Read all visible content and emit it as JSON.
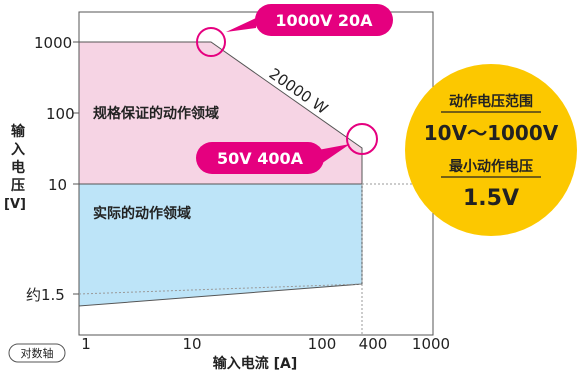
{
  "y_ticks": [
    "1000",
    "100",
    "10",
    "约1.5"
  ],
  "x_ticks": [
    "1",
    "10",
    "100",
    "400",
    "1000"
  ],
  "y_axis_label": [
    "输",
    "入",
    "电",
    "压",
    "[V]"
  ],
  "x_axis_label": "输入电流 [A]",
  "log_axis_tag": "对数轴",
  "region_guaranteed": "规格保证的动作领域",
  "region_actual": "实际的动作领域",
  "power_line_label": "20000 W",
  "callout_top": "1000V 20A",
  "callout_left": "50V 400A",
  "info": {
    "title1": "动作电压范围",
    "value1": "10V～1000V",
    "title2": "最小动作电压",
    "value2": "1.5V"
  },
  "colors": {
    "pink_fill": "#f6d4e4",
    "blue_fill": "#bde4f8",
    "magenta": "#e5007f",
    "yellow": "#fcc800",
    "axis": "#555555"
  }
}
